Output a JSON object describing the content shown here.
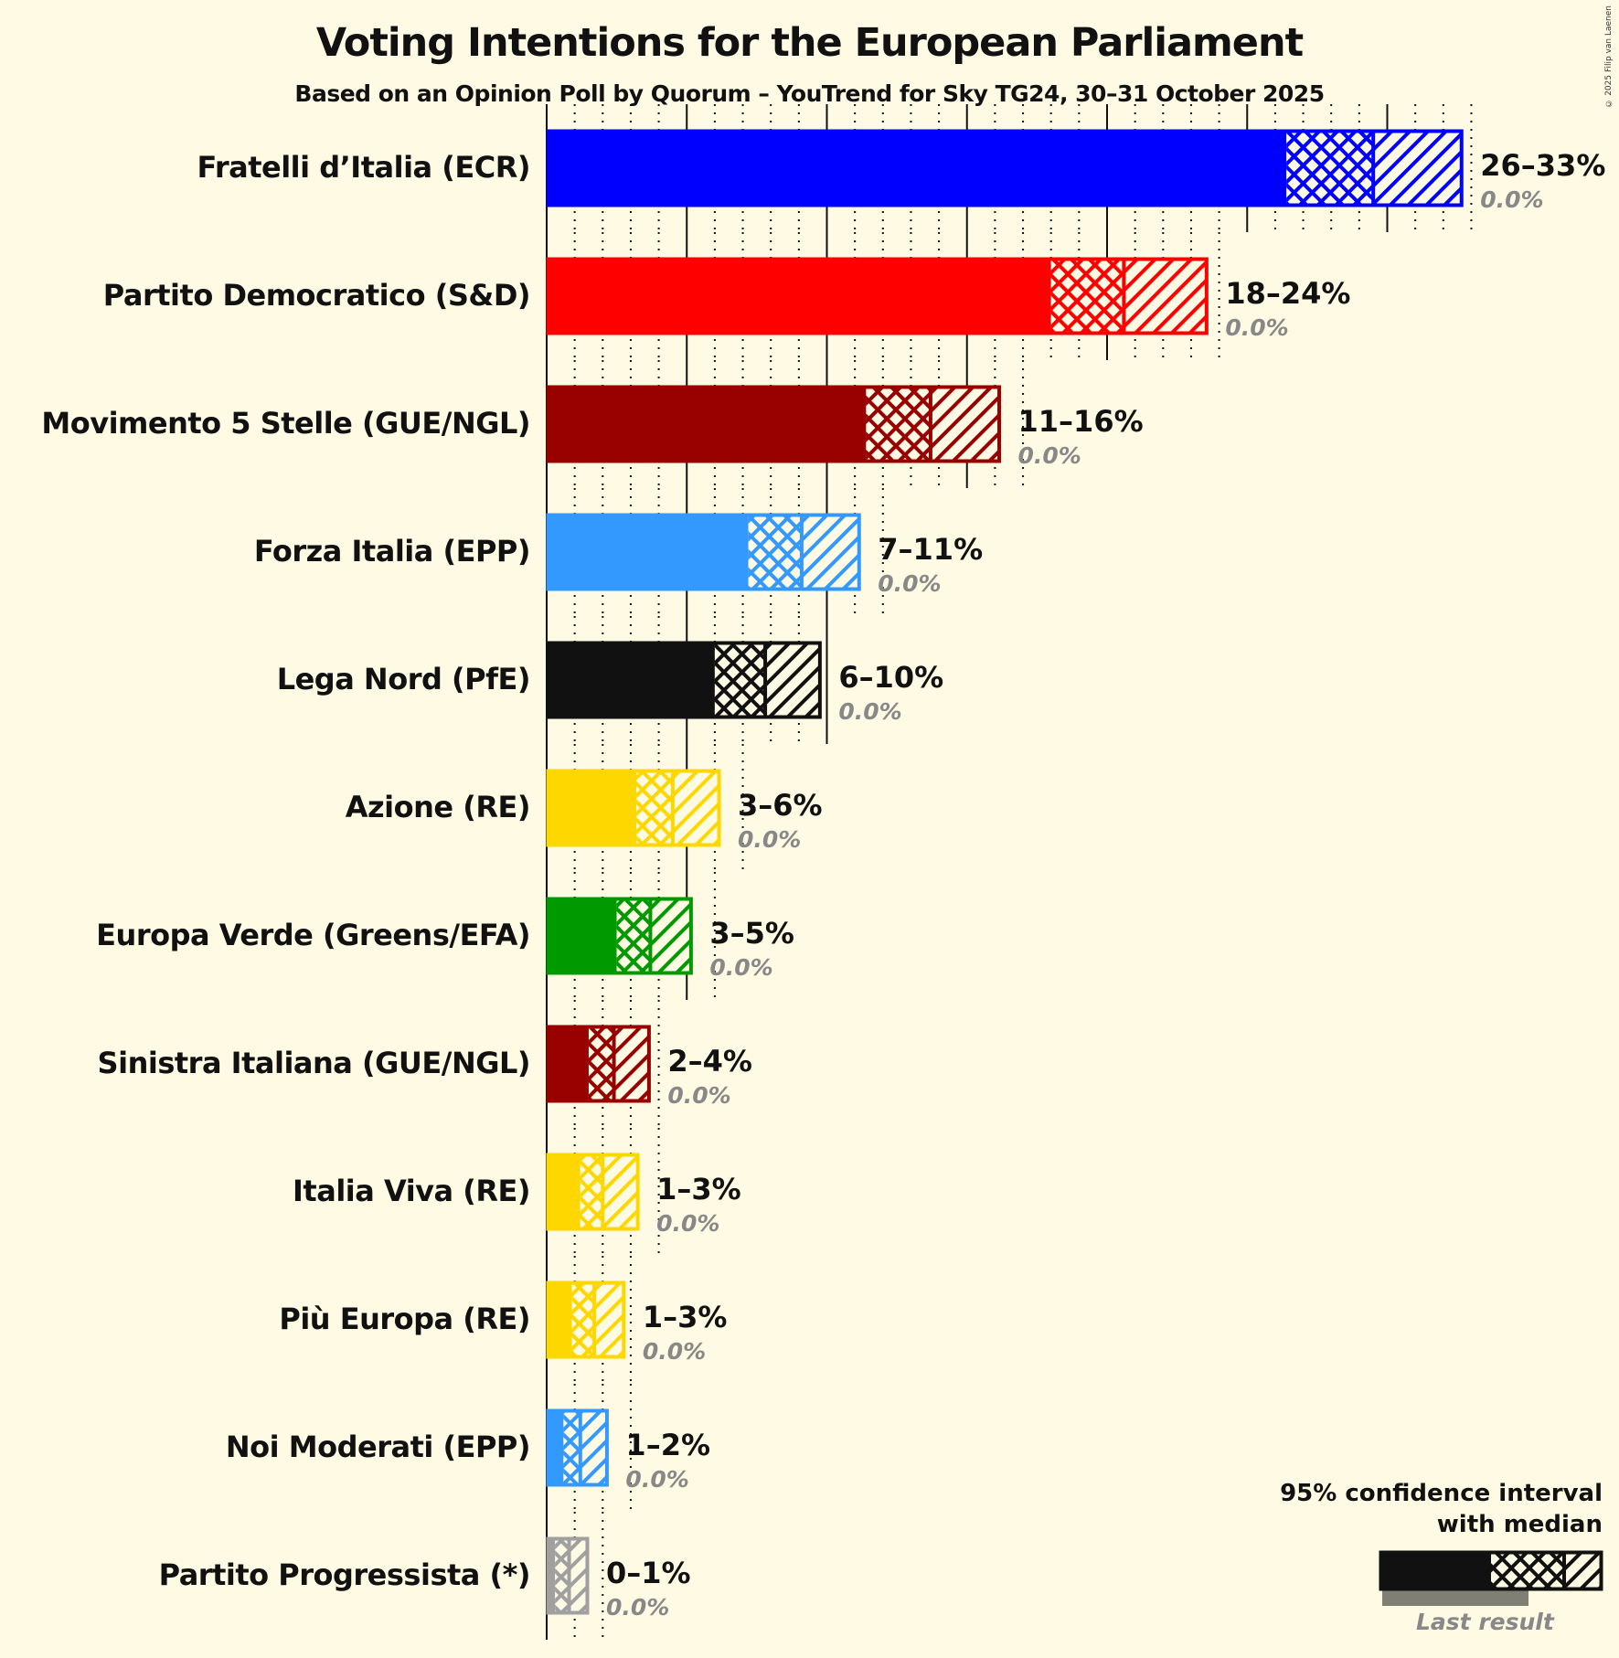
{
  "header": {
    "title": "Voting Intentions for the European Parliament",
    "subtitle": "Based on an Opinion Poll by Quorum – YouTrend for Sky TG24, 30–31 October 2025",
    "copyright": "© 2025 Filip van Laenen"
  },
  "legend": {
    "line1": "95% confidence interval",
    "line2": "with median",
    "last_result": "Last result"
  },
  "chart_data": {
    "type": "bar",
    "orientation": "horizontal",
    "title": "Voting Intentions for the European Parliament",
    "subtitle": "Based on an Opinion Poll by Quorum – YouTrend for Sky TG24, 30–31 October 2025",
    "xlabel": "",
    "ylabel": "",
    "xlim": [
      0,
      33
    ],
    "grid": {
      "major_every": 5,
      "minor_every": 1
    },
    "categories": [
      "Fratelli d’Italia (ECR)",
      "Partito Democratico (S&D)",
      "Movimento 5 Stelle (GUE/NGL)",
      "Forza Italia (EPP)",
      "Lega Nord (PfE)",
      "Azione (RE)",
      "Europa Verde (Greens/EFA)",
      "Sinistra Italiana (GUE/NGL)",
      "Italia Viva (RE)",
      "Più Europa (RE)",
      "Noi Moderati (EPP)",
      "Partito Progressista (*)"
    ],
    "series": [
      {
        "name": "CI low",
        "values": [
          26.4,
          18.0,
          11.4,
          7.2,
          6.0,
          3.2,
          2.5,
          1.5,
          1.2,
          0.9,
          0.6,
          0.3
        ]
      },
      {
        "name": "Median",
        "values": [
          29.5,
          20.6,
          13.7,
          9.1,
          7.8,
          4.5,
          3.7,
          2.4,
          2.0,
          1.7,
          1.2,
          0.8
        ]
      },
      {
        "name": "CI high",
        "values": [
          32.7,
          23.6,
          16.2,
          11.2,
          9.8,
          6.2,
          5.2,
          3.7,
          3.3,
          2.8,
          2.2,
          1.5
        ]
      },
      {
        "name": "Last result",
        "values": [
          0.0,
          0.0,
          0.0,
          0.0,
          0.0,
          0.0,
          0.0,
          0.0,
          0.0,
          0.0,
          0.0,
          0.0
        ]
      }
    ],
    "range_labels": [
      "26–33%",
      "18–24%",
      "11–16%",
      "7–11%",
      "6–10%",
      "3–6%",
      "3–5%",
      "2–4%",
      "1–3%",
      "1–3%",
      "1–2%",
      "0–1%"
    ],
    "last_result_labels": [
      "0.0%",
      "0.0%",
      "0.0%",
      "0.0%",
      "0.0%",
      "0.0%",
      "0.0%",
      "0.0%",
      "0.0%",
      "0.0%",
      "0.0%",
      "0.0%"
    ],
    "colors": [
      "#0000FF",
      "#FF0000",
      "#990000",
      "#3399FF",
      "#111111",
      "#FFD700",
      "#009900",
      "#990000",
      "#FFD700",
      "#FFD700",
      "#3399FF",
      "#A0A0A0"
    ],
    "legend": [
      "95% confidence interval with median",
      "Last result"
    ]
  }
}
